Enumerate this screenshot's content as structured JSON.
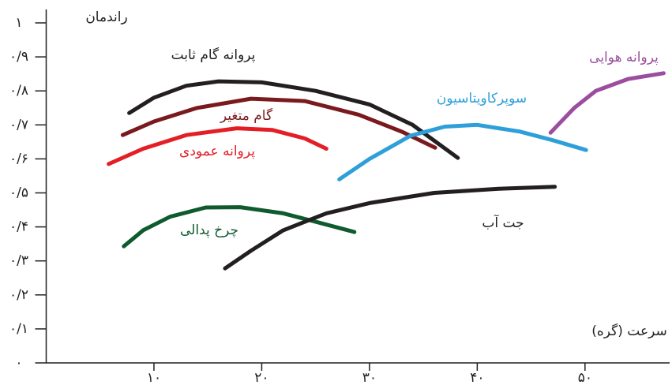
{
  "chart_data": {
    "type": "line",
    "y_label": "راندمان",
    "x_label": "سرعت (گره)",
    "xlim": [
      0,
      58
    ],
    "ylim": [
      0,
      1
    ],
    "xticks": [
      {
        "value": 10,
        "label": "۱۰"
      },
      {
        "value": 20,
        "label": "۲۰"
      },
      {
        "value": 30,
        "label": "۳۰"
      },
      {
        "value": 40,
        "label": "۴۰"
      },
      {
        "value": 50,
        "label": "۵۰"
      }
    ],
    "yticks": [
      {
        "value": 0,
        "label": "۰"
      },
      {
        "value": 0.1,
        "label": "۰/۱"
      },
      {
        "value": 0.2,
        "label": "۰/۲"
      },
      {
        "value": 0.3,
        "label": "۰/۳"
      },
      {
        "value": 0.4,
        "label": "۰/۴"
      },
      {
        "value": 0.5,
        "label": "۰/۵"
      },
      {
        "value": 0.6,
        "label": "۰/۶"
      },
      {
        "value": 0.7,
        "label": "۰/۷"
      },
      {
        "value": 0.8,
        "label": "۰/۸"
      },
      {
        "value": 0.9,
        "label": "۰/۹"
      },
      {
        "value": 1,
        "label": "۱"
      }
    ],
    "series": [
      {
        "name": "پروانه گام ثابت",
        "color": "#231f20",
        "x": [
          7.7,
          10,
          13,
          16,
          20,
          25,
          30,
          34,
          38.2
        ],
        "values": [
          0.735,
          0.78,
          0.815,
          0.828,
          0.825,
          0.8,
          0.76,
          0.7,
          0.603
        ]
      },
      {
        "name": "گام متغیر",
        "color": "#7a1a1e",
        "x": [
          7.1,
          10,
          14,
          19,
          24,
          29,
          33,
          36.1
        ],
        "values": [
          0.67,
          0.71,
          0.75,
          0.777,
          0.77,
          0.73,
          0.68,
          0.633
        ]
      },
      {
        "name": "پروانه عمودی",
        "color": "#e41e26",
        "x": [
          5.8,
          9,
          13,
          17.7,
          21,
          24,
          26
        ],
        "values": [
          0.585,
          0.63,
          0.67,
          0.69,
          0.685,
          0.66,
          0.63
        ]
      },
      {
        "name": "چرخ پدالی",
        "color": "#0f5a2e",
        "x": [
          7.2,
          9,
          11.5,
          14.8,
          18,
          22,
          25,
          28.6
        ],
        "values": [
          0.343,
          0.39,
          0.43,
          0.457,
          0.458,
          0.44,
          0.415,
          0.385
        ]
      },
      {
        "name": "جت آب",
        "color": "#231f20",
        "x": [
          16.6,
          19,
          22,
          26,
          30,
          36,
          42,
          47.2
        ],
        "values": [
          0.278,
          0.33,
          0.39,
          0.44,
          0.47,
          0.5,
          0.512,
          0.518
        ]
      },
      {
        "name": "سوپرکاویتاسیون",
        "color": "#2e9fd9",
        "x": [
          27.2,
          30,
          33.8,
          37,
          40,
          44,
          47,
          50.1
        ],
        "values": [
          0.54,
          0.6,
          0.668,
          0.695,
          0.7,
          0.68,
          0.655,
          0.626
        ]
      },
      {
        "name": "پروانه هوایی",
        "color": "#9b4d9f",
        "x": [
          46.8,
          49,
          51,
          54,
          57.3
        ],
        "values": [
          0.677,
          0.75,
          0.8,
          0.835,
          0.852
        ]
      }
    ]
  }
}
